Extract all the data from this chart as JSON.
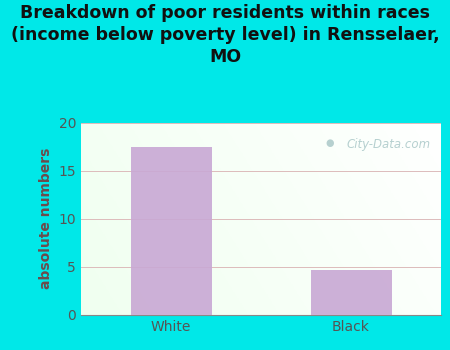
{
  "categories": [
    "White",
    "Black"
  ],
  "values": [
    17.5,
    4.7
  ],
  "bar_color": "#c8a8d4",
  "title": "Breakdown of poor residents within races\n(income below poverty level) in Rensselaer,\nMO",
  "ylabel": "absolute numbers",
  "ylim": [
    0,
    20
  ],
  "yticks": [
    0,
    5,
    10,
    15,
    20
  ],
  "bg_color": "#00e8e8",
  "plot_bg_color": "#eaf5e8",
  "grid_color": "#ddbbbb",
  "title_fontsize": 12.5,
  "label_fontsize": 10,
  "tick_fontsize": 10,
  "ylabel_color": "#6b4c4c",
  "tick_color": "#555555",
  "title_color": "#111111",
  "watermark_text": "City-Data.com",
  "watermark_color": "#aac8c8",
  "bar_width": 0.45
}
